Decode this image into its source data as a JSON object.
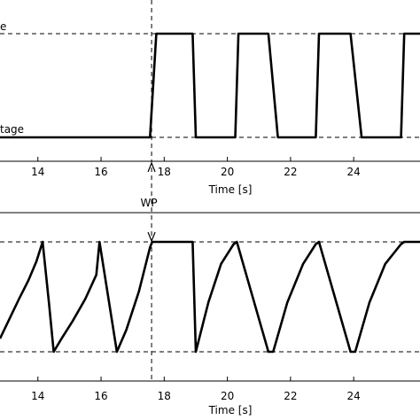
{
  "chart_data": [
    {
      "type": "line",
      "xlabel": "Time [s]",
      "xlim": [
        12.8,
        26.1
      ],
      "xticks": [
        14,
        16,
        18,
        20,
        22,
        24
      ],
      "ylim": [
        0,
        1
      ],
      "upper_label_fragment": "e",
      "lower_label_fragment": "tage",
      "series": [
        {
          "x": [
            12.8,
            17.55,
            17.75,
            18.9,
            19.0,
            20.25,
            20.35,
            21.3,
            21.6,
            22.8,
            22.9,
            23.9,
            24.25,
            25.5,
            25.6,
            26.1
          ],
          "y": [
            0,
            0,
            1,
            1,
            0,
            0,
            1,
            1,
            0,
            0,
            1,
            1,
            0,
            0,
            1,
            1
          ]
        }
      ]
    },
    {
      "type": "line",
      "xlabel": "Time [s]",
      "xlim": [
        12.8,
        26.1
      ],
      "xticks": [
        14,
        16,
        18,
        20,
        22,
        24
      ],
      "ylim": [
        0,
        1
      ],
      "series": [
        {
          "x": [
            12.8,
            13.1,
            13.4,
            13.7,
            13.95,
            14.15,
            14.35,
            14.5,
            14.75,
            15.1,
            15.5,
            15.85,
            15.95,
            16.5,
            16.8,
            17.2,
            17.55,
            17.62,
            18.9,
            19.0,
            19.4,
            19.8,
            20.2,
            20.3,
            21.3,
            21.45,
            21.9,
            22.4,
            22.8,
            22.9,
            23.9,
            24.05,
            24.5,
            25.0,
            25.5,
            25.6,
            26.1
          ],
          "y": [
            0.12,
            0.3,
            0.48,
            0.65,
            0.82,
            1.0,
            0.45,
            0.0,
            0.12,
            0.28,
            0.48,
            0.7,
            1.0,
            0.0,
            0.2,
            0.55,
            0.95,
            1.0,
            1.0,
            0.0,
            0.45,
            0.8,
            0.98,
            1.0,
            0.0,
            0.0,
            0.45,
            0.8,
            0.98,
            1.0,
            0.0,
            0.0,
            0.45,
            0.8,
            0.98,
            1.0,
            1.0
          ]
        }
      ]
    }
  ],
  "annotation": {
    "label": "WP",
    "x": 17.6
  }
}
